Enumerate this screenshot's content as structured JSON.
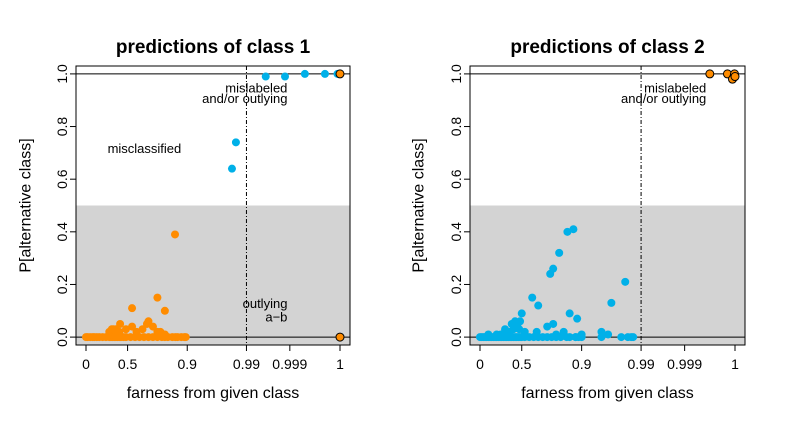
{
  "chart_data": [
    {
      "type": "scatter",
      "title": "predictions of class 1",
      "xlabel": "farness from given class",
      "ylabel": "P[alternative class]",
      "x_scale": "farness (tail-stretched)",
      "xticks": [
        0,
        0.5,
        0.9,
        0.99,
        0.999,
        1
      ],
      "xtick_labels": [
        "0",
        "0.5",
        "0.9",
        "0.99",
        "0.999",
        "1"
      ],
      "yticks": [
        0,
        0.2,
        0.4,
        0.6,
        0.8,
        1.0
      ],
      "ytick_labels": [
        "0.0",
        "0.2",
        "0.4",
        "0.6",
        "0.8",
        "1.0"
      ],
      "ylim": [
        -0.03,
        1.03
      ],
      "shaded_region": {
        "y_from": -0.03,
        "y_to": 0.5,
        "color": "#d3d3d3"
      },
      "hlines": [
        0,
        1
      ],
      "vline_x": 0.99,
      "annotations": [
        {
          "text": "misclassified",
          "x": 0.86,
          "y": 0.7
        },
        {
          "text": "mislabeled",
          "x": 0.9985,
          "y": 0.93
        },
        {
          "text": "and/or outlying",
          "x": 0.9985,
          "y": 0.89
        },
        {
          "text": "outlying",
          "x": 0.9985,
          "y": 0.11
        },
        {
          "text": "a−b",
          "x": 0.9985,
          "y": 0.06
        }
      ],
      "series": [
        {
          "color": "#ff8c00",
          "points": [
            [
              0.0,
              0.0
            ],
            [
              0.02,
              0.0
            ],
            [
              0.05,
              0.0
            ],
            [
              0.08,
              0.0
            ],
            [
              0.1,
              0.0
            ],
            [
              0.13,
              0.0
            ],
            [
              0.16,
              0.0
            ],
            [
              0.2,
              0.0
            ],
            [
              0.24,
              0.0
            ],
            [
              0.28,
              0.0
            ],
            [
              0.3,
              0.0
            ],
            [
              0.32,
              0.0
            ],
            [
              0.34,
              0.0
            ],
            [
              0.36,
              0.0
            ],
            [
              0.38,
              0.0
            ],
            [
              0.4,
              0.0
            ],
            [
              0.42,
              0.0
            ],
            [
              0.45,
              0.0
            ],
            [
              0.48,
              0.0
            ],
            [
              0.52,
              0.0
            ],
            [
              0.55,
              0.0
            ],
            [
              0.58,
              0.0
            ],
            [
              0.61,
              0.0
            ],
            [
              0.64,
              0.0
            ],
            [
              0.67,
              0.0
            ],
            [
              0.7,
              0.0
            ],
            [
              0.73,
              0.0
            ],
            [
              0.75,
              0.0
            ],
            [
              0.77,
              0.0
            ],
            [
              0.8,
              0.0
            ],
            [
              0.82,
              0.0
            ],
            [
              0.835,
              0.0
            ],
            [
              0.86,
              0.0
            ],
            [
              0.88,
              0.0
            ],
            [
              0.89,
              0.0
            ],
            [
              0.3,
              0.01
            ],
            [
              0.32,
              0.01
            ],
            [
              0.35,
              0.01
            ],
            [
              0.28,
              0.02
            ],
            [
              0.31,
              0.03
            ],
            [
              0.33,
              0.03
            ],
            [
              0.36,
              0.03
            ],
            [
              0.37,
              0.02
            ],
            [
              0.4,
              0.02
            ],
            [
              0.41,
              0.05
            ],
            [
              0.48,
              0.03
            ],
            [
              0.53,
              0.04
            ],
            [
              0.56,
              0.02
            ],
            [
              0.6,
              0.03
            ],
            [
              0.63,
              0.05
            ],
            [
              0.64,
              0.06
            ],
            [
              0.67,
              0.04
            ],
            [
              0.7,
              0.02
            ],
            [
              0.72,
              0.02
            ],
            [
              0.75,
              0.01
            ],
            [
              0.53,
              0.11
            ],
            [
              0.7,
              0.15
            ],
            [
              0.75,
              0.1
            ],
            [
              0.818,
              0.39
            ]
          ]
        },
        {
          "color": "#00b0e8",
          "points": [
            [
              0.968,
              0.64
            ],
            [
              0.974,
              0.74
            ],
            [
              0.994,
              0.99
            ],
            [
              0.998,
              0.99
            ],
            [
              0.9993,
              1.0
            ],
            [
              0.9997,
              1.0
            ],
            [
              0.99995,
              1.0
            ],
            [
              0.99999,
              1.0
            ]
          ]
        },
        {
          "color": "#ff8c00",
          "outlined": true,
          "points": [
            [
              1.0,
              1.0
            ],
            [
              1.0,
              0.0
            ]
          ]
        }
      ]
    },
    {
      "type": "scatter",
      "title": "predictions of class 2",
      "xlabel": "farness from given class",
      "ylabel": "P[alternative class]",
      "x_scale": "farness (tail-stretched)",
      "xticks": [
        0,
        0.5,
        0.9,
        0.99,
        0.999,
        1
      ],
      "xtick_labels": [
        "0",
        "0.5",
        "0.9",
        "0.99",
        "0.999",
        "1"
      ],
      "yticks": [
        0,
        0.2,
        0.4,
        0.6,
        0.8,
        1.0
      ],
      "ytick_labels": [
        "0.0",
        "0.2",
        "0.4",
        "0.6",
        "0.8",
        "1.0"
      ],
      "ylim": [
        -0.03,
        1.03
      ],
      "shaded_region": {
        "y_from": -0.03,
        "y_to": 0.5,
        "color": "#d3d3d3"
      },
      "hlines": [
        0,
        1
      ],
      "vline_x": 0.99,
      "annotations": [
        {
          "text": "mislabeled",
          "x": 0.99943,
          "y": 0.93
        },
        {
          "text": "and/or outlying",
          "x": 0.99943,
          "y": 0.89
        }
      ],
      "series": [
        {
          "color": "#00b0e8",
          "points": [
            [
              0.0,
              0.0
            ],
            [
              0.02,
              0.0
            ],
            [
              0.04,
              0.0
            ],
            [
              0.06,
              0.0
            ],
            [
              0.08,
              0.0
            ],
            [
              0.1,
              0.0
            ],
            [
              0.12,
              0.0
            ],
            [
              0.14,
              0.0
            ],
            [
              0.16,
              0.0
            ],
            [
              0.18,
              0.0
            ],
            [
              0.2,
              0.0
            ],
            [
              0.22,
              0.0
            ],
            [
              0.24,
              0.0
            ],
            [
              0.26,
              0.0
            ],
            [
              0.28,
              0.0
            ],
            [
              0.3,
              0.0
            ],
            [
              0.32,
              0.0
            ],
            [
              0.34,
              0.0
            ],
            [
              0.36,
              0.0
            ],
            [
              0.38,
              0.0
            ],
            [
              0.4,
              0.0
            ],
            [
              0.42,
              0.0
            ],
            [
              0.44,
              0.0
            ],
            [
              0.46,
              0.0
            ],
            [
              0.48,
              0.0
            ],
            [
              0.5,
              0.0
            ],
            [
              0.52,
              0.0
            ],
            [
              0.55,
              0.0
            ],
            [
              0.58,
              0.0
            ],
            [
              0.61,
              0.0
            ],
            [
              0.64,
              0.0
            ],
            [
              0.67,
              0.0
            ],
            [
              0.7,
              0.0
            ],
            [
              0.73,
              0.0
            ],
            [
              0.76,
              0.0
            ],
            [
              0.8,
              0.0
            ],
            [
              0.86,
              0.0
            ],
            [
              0.88,
              0.0
            ],
            [
              0.9,
              0.0
            ],
            [
              0.93,
              0.0
            ],
            [
              0.96,
              0.0
            ],
            [
              0.97,
              0.0
            ],
            [
              0.975,
              0.0
            ],
            [
              0.978,
              0.0
            ],
            [
              0.1,
              0.01
            ],
            [
              0.2,
              0.01
            ],
            [
              0.25,
              0.01
            ],
            [
              0.3,
              0.02
            ],
            [
              0.35,
              0.02
            ],
            [
              0.4,
              0.03
            ],
            [
              0.43,
              0.04
            ],
            [
              0.47,
              0.03
            ],
            [
              0.52,
              0.02
            ],
            [
              0.6,
              0.02
            ],
            [
              0.3,
              0.03
            ],
            [
              0.38,
              0.05
            ],
            [
              0.42,
              0.06
            ],
            [
              0.45,
              0.05
            ],
            [
              0.48,
              0.06
            ],
            [
              0.5,
              0.09
            ],
            [
              0.61,
              0.12
            ],
            [
              0.67,
              0.04
            ],
            [
              0.71,
              0.05
            ],
            [
              0.73,
              0.01
            ],
            [
              0.78,
              0.02
            ],
            [
              0.82,
              0.0
            ],
            [
              0.86,
              0.0
            ],
            [
              0.9,
              0.01
            ],
            [
              0.93,
              0.02
            ],
            [
              0.94,
              0.01
            ],
            [
              0.57,
              0.15
            ],
            [
              0.69,
              0.24
            ],
            [
              0.71,
              0.26
            ],
            [
              0.75,
              0.32
            ],
            [
              0.805,
              0.4
            ],
            [
              0.845,
              0.41
            ],
            [
              0.82,
              0.09
            ],
            [
              0.87,
              0.07
            ],
            [
              0.945,
              0.13
            ],
            [
              0.966,
              0.21
            ]
          ]
        },
        {
          "color": "#ff8c00",
          "outlined": true,
          "points": [
            [
              0.9995,
              1.0
            ],
            [
              0.99985,
              1.0
            ],
            [
              0.99998,
              0.99
            ],
            [
              0.99995,
              0.98
            ],
            [
              0.99999,
              1.0
            ],
            [
              1.0,
              0.99
            ]
          ]
        }
      ]
    }
  ]
}
